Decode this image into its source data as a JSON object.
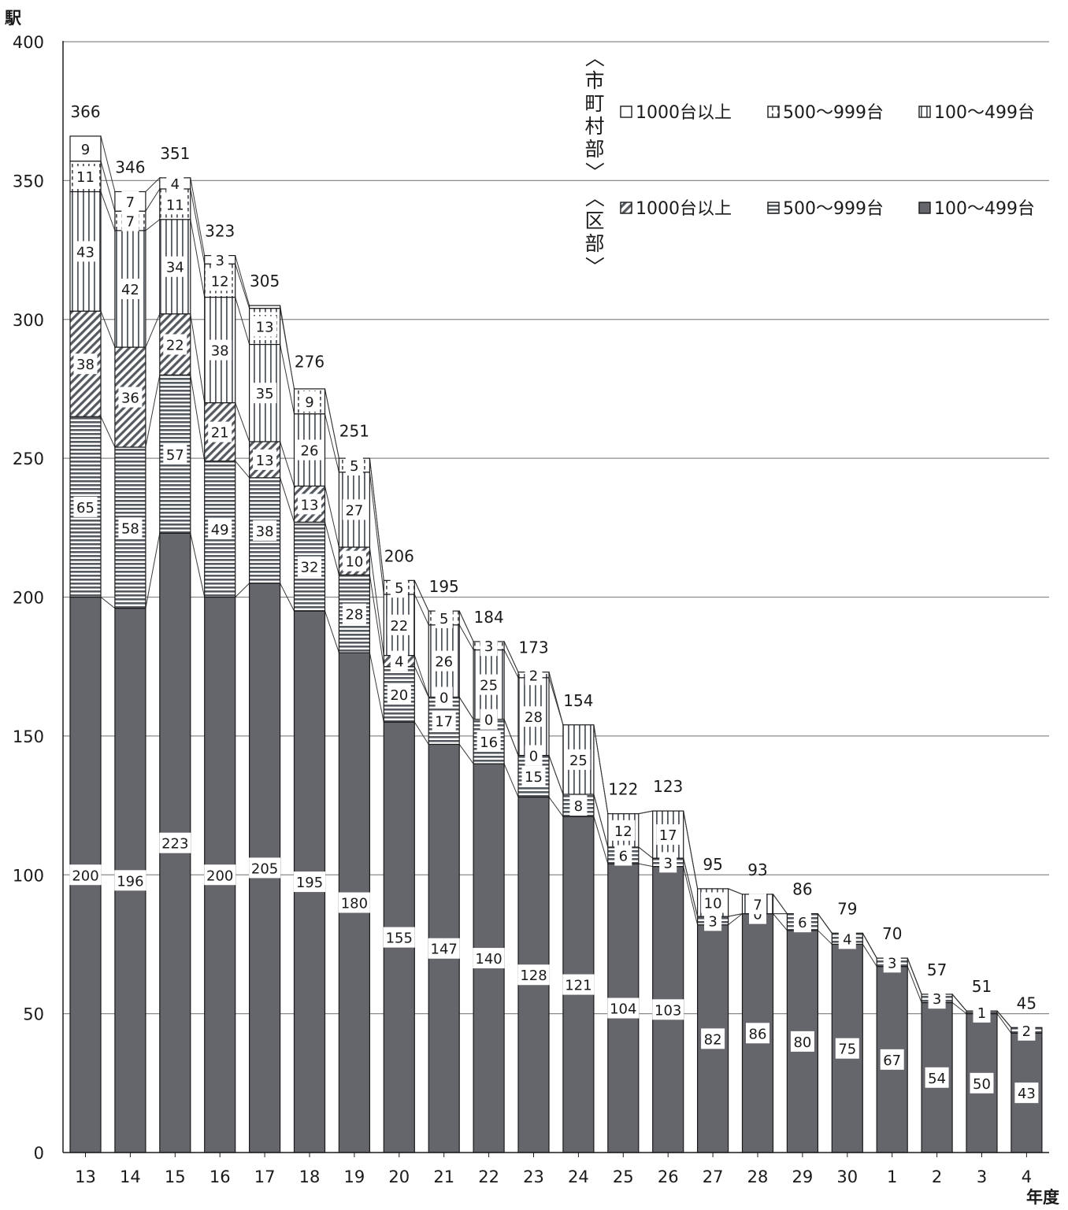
{
  "chart_data": {
    "type": "bar",
    "stacked": true,
    "ylabel": "駅",
    "xlabel": "年度",
    "ylim": [
      0,
      400
    ],
    "yticks": [
      0,
      50,
      100,
      150,
      200,
      250,
      300,
      350,
      400
    ],
    "grid": true,
    "legend_position": "top-right",
    "categories": [
      "13",
      "14",
      "15",
      "16",
      "17",
      "18",
      "19",
      "20",
      "21",
      "22",
      "23",
      "24",
      "25",
      "26",
      "27",
      "28",
      "29",
      "30",
      "1",
      "2",
      "3",
      "4"
    ],
    "legend_groups": [
      {
        "label": "〈市町村部〉",
        "series": [
          5,
          4,
          3
        ]
      },
      {
        "label": "〈区部〉",
        "series": [
          2,
          1,
          0
        ]
      }
    ],
    "series": [
      {
        "name": "100～499台",
        "group": "区部",
        "pattern": "solid-dark",
        "values": [
          200,
          196,
          223,
          200,
          205,
          195,
          180,
          155,
          147,
          140,
          128,
          121,
          104,
          103,
          82,
          86,
          80,
          75,
          67,
          54,
          50,
          43
        ]
      },
      {
        "name": "500～999台",
        "group": "区部",
        "pattern": "horizontal-stripes",
        "values": [
          65,
          58,
          57,
          49,
          38,
          32,
          28,
          20,
          17,
          16,
          15,
          8,
          6,
          3,
          3,
          0,
          6,
          4,
          3,
          3,
          1,
          2
        ]
      },
      {
        "name": "1000台以上",
        "group": "区部",
        "pattern": "diagonal-hatch",
        "values": [
          38,
          36,
          22,
          21,
          13,
          13,
          10,
          4,
          0,
          0,
          0,
          0,
          0,
          0,
          0,
          0,
          0,
          0,
          0,
          0,
          0,
          0
        ]
      },
      {
        "name": "100～499台",
        "group": "市町村部",
        "pattern": "vertical-stripes",
        "values": [
          43,
          42,
          34,
          38,
          35,
          26,
          27,
          22,
          26,
          25,
          28,
          25,
          12,
          17,
          10,
          7,
          0,
          0,
          0,
          0,
          0,
          0
        ]
      },
      {
        "name": "500～999台",
        "group": "市町村部",
        "pattern": "dashed-vertical",
        "values": [
          11,
          7,
          11,
          12,
          13,
          9,
          5,
          5,
          5,
          3,
          2,
          0,
          0,
          0,
          0,
          0,
          0,
          0,
          0,
          0,
          0,
          0
        ]
      },
      {
        "name": "1000台以上",
        "group": "市町村部",
        "pattern": "white",
        "values": [
          9,
          7,
          4,
          3,
          1,
          0,
          0,
          0,
          0,
          0,
          0,
          0,
          0,
          0,
          0,
          0,
          0,
          0,
          0,
          0,
          0,
          0
        ]
      }
    ],
    "segment_labels": [
      [
        "200",
        "65",
        "38",
        "43",
        "11",
        "9"
      ],
      [
        "196",
        "58",
        "36",
        "42",
        "7",
        "7"
      ],
      [
        "223",
        "57",
        "22",
        "34",
        "11",
        "4"
      ],
      [
        "200",
        "49",
        "21",
        "38",
        "12",
        "3"
      ],
      [
        "205",
        "38",
        "13",
        "35",
        "13",
        ""
      ],
      [
        "195",
        "32",
        "13",
        "26",
        "9",
        ""
      ],
      [
        "180",
        "28",
        "10",
        "27",
        "5",
        ""
      ],
      [
        "155",
        "20",
        "4",
        "22",
        "5",
        ""
      ],
      [
        "147",
        "17",
        "0",
        "26",
        "5",
        ""
      ],
      [
        "140",
        "16",
        "0",
        "25",
        "3",
        ""
      ],
      [
        "128",
        "15",
        "0",
        "28",
        "2",
        ""
      ],
      [
        "121",
        "8",
        "",
        "25",
        "",
        ""
      ],
      [
        "104",
        "6",
        "",
        "12",
        "",
        ""
      ],
      [
        "103",
        "3",
        "",
        "17",
        "",
        ""
      ],
      [
        "82",
        "3",
        "",
        "10",
        "",
        ""
      ],
      [
        "86",
        "0",
        "",
        "7",
        "",
        ""
      ],
      [
        "80",
        "6",
        "",
        "",
        "",
        ""
      ],
      [
        "75",
        "4",
        "",
        "",
        "",
        ""
      ],
      [
        "67",
        "3",
        "",
        "",
        "",
        ""
      ],
      [
        "54",
        "3",
        "",
        "",
        "",
        ""
      ],
      [
        "50",
        "1",
        "",
        "",
        "",
        ""
      ],
      [
        "43",
        "2",
        "",
        "",
        "",
        ""
      ]
    ],
    "totals": [
      366,
      346,
      351,
      323,
      305,
      276,
      251,
      206,
      195,
      184,
      173,
      154,
      122,
      123,
      95,
      93,
      86,
      79,
      70,
      57,
      51,
      45
    ]
  }
}
